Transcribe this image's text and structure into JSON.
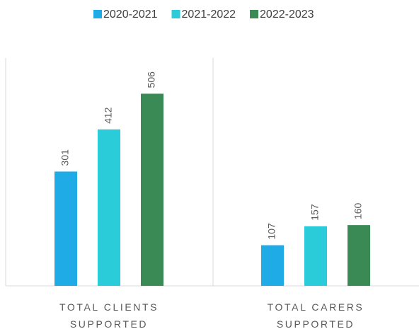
{
  "chart_data": {
    "type": "bar",
    "categories": [
      "TOTAL CLIENTS SUPPORTED",
      "TOTAL CARERS SUPPORTED"
    ],
    "series": [
      {
        "name": "2020-2021",
        "color": "#1eabe6",
        "values": [
          301,
          107
        ]
      },
      {
        "name": "2021-2022",
        "color": "#29ccd8",
        "values": [
          412,
          157
        ]
      },
      {
        "name": "2022-2023",
        "color": "#3a8a55",
        "values": [
          506,
          160
        ]
      }
    ],
    "ylim": [
      0,
      600
    ],
    "legend": "top"
  }
}
